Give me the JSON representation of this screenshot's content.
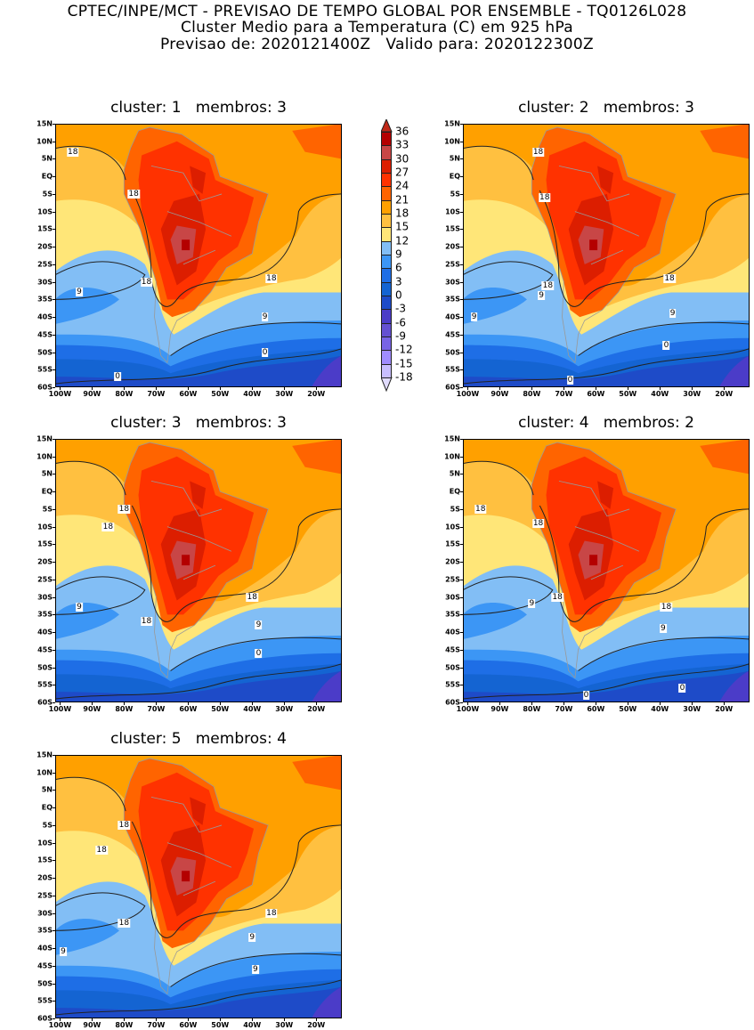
{
  "header": {
    "line1": "CPTEC/INPE/MCT - PREVISAO DE TEMPO GLOBAL POR ENSEMBLE - TQ0126L028",
    "line2": "Cluster Medio para a Temperatura (C) em 925 hPa",
    "line3": "Previsao de: 2020121400Z   Valido para: 2020122300Z"
  },
  "panels": [
    {
      "title": "cluster: 1   membros: 3",
      "contour_labels": [
        "18",
        "18",
        "18",
        "18",
        "9",
        "9",
        "0",
        "0"
      ]
    },
    {
      "title": "cluster: 2   membros: 3",
      "contour_labels": [
        "18",
        "18",
        "18",
        "18",
        "9",
        "9",
        "9",
        "0",
        "0"
      ]
    },
    {
      "title": "cluster: 3   membros: 3",
      "contour_labels": [
        "18",
        "18",
        "18",
        "18",
        "9",
        "9",
        "0"
      ]
    },
    {
      "title": "cluster: 4   membros: 2",
      "contour_labels": [
        "18",
        "18",
        "18",
        "18",
        "9",
        "9",
        "0",
        "0"
      ]
    },
    {
      "title": "cluster: 5   membros: 4",
      "contour_labels": [
        "18",
        "18",
        "18",
        "18",
        "9",
        "9",
        "9",
        "0"
      ]
    }
  ],
  "axes": {
    "lat_labels": [
      "15N",
      "10N",
      "5N",
      "EQ",
      "5S",
      "10S",
      "15S",
      "20S",
      "25S",
      "30S",
      "35S",
      "40S",
      "45S",
      "50S",
      "55S",
      "60S"
    ],
    "lon_labels": [
      "100W",
      "90W",
      "80W",
      "70W",
      "60W",
      "50W",
      "40W",
      "30W",
      "20W"
    ]
  },
  "colorbar": {
    "labels": [
      "36",
      "33",
      "30",
      "27",
      "24",
      "21",
      "18",
      "15",
      "12",
      "9",
      "6",
      "3",
      "0",
      "-3",
      "-6",
      "-9",
      "-12",
      "-15",
      "-18"
    ],
    "colors": [
      "#b40000",
      "#c84646",
      "#dc1e00",
      "#ff3200",
      "#ff6400",
      "#ffa000",
      "#ffc040",
      "#ffe678",
      "#82bef5",
      "#3c96f5",
      "#1e6ee6",
      "#1464d2",
      "#1e4bc8",
      "#4b3cc8",
      "#6450d2",
      "#7864e6",
      "#a08cff",
      "#c8beff"
    ],
    "over_color": "#c02818",
    "under_color": "#e1dcff"
  }
}
